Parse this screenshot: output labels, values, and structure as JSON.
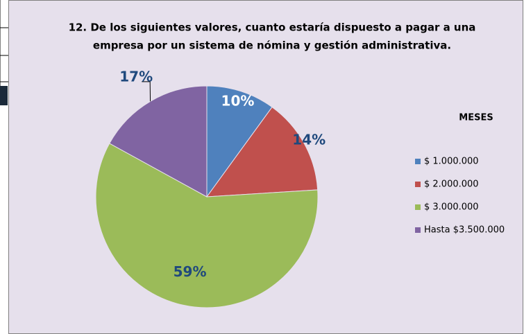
{
  "chart_data": {
    "type": "pie",
    "title": [
      "12. De los siguientes valores, cuanto estaría dispuesto a pagar a una",
      "empresa por un sistema de nómina y gestión administrativa."
    ],
    "legend_title": "MESES",
    "categories": [
      "$ 1.000.000",
      "$ 2.000.000",
      "$ 3.000.000",
      "Hasta  $3.500.000"
    ],
    "values": [
      10,
      14,
      59,
      17
    ],
    "value_labels": [
      "10%",
      "14%",
      "59%",
      "17%"
    ],
    "colors": [
      "#4f81bd",
      "#c0504d",
      "#9bbb59",
      "#8064a2"
    ],
    "legend": "right"
  }
}
